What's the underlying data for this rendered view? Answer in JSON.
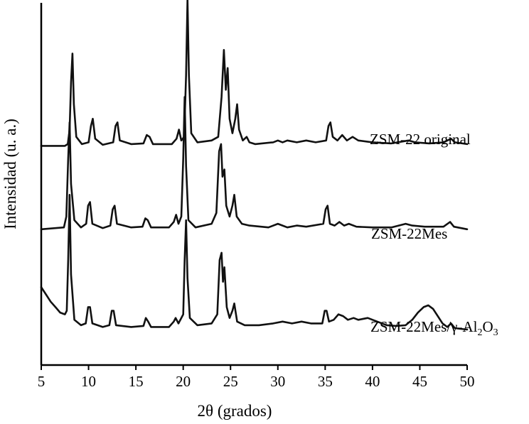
{
  "chart_data": {
    "type": "line",
    "title": "",
    "xlabel": "2θ (grados)",
    "ylabel": "Intensidad (u. a.)",
    "xlim": [
      5,
      50
    ],
    "x_ticks": [
      5,
      10,
      15,
      20,
      25,
      30,
      35,
      40,
      45,
      50
    ],
    "ylim": [
      0,
      1
    ],
    "grid": false,
    "legend": "inline labels at right of each trace",
    "series": [
      {
        "name": "ZSM-22 original",
        "offset": 0.6,
        "points": [
          [
            5,
            0.005
          ],
          [
            7.5,
            0.005
          ],
          [
            7.8,
            0.01
          ],
          [
            8.0,
            0.05
          ],
          [
            8.15,
            0.18
          ],
          [
            8.3,
            0.26
          ],
          [
            8.45,
            0.12
          ],
          [
            8.7,
            0.03
          ],
          [
            9.3,
            0.01
          ],
          [
            10.0,
            0.015
          ],
          [
            10.25,
            0.06
          ],
          [
            10.45,
            0.08
          ],
          [
            10.7,
            0.025
          ],
          [
            11.5,
            0.008
          ],
          [
            12.6,
            0.015
          ],
          [
            12.85,
            0.06
          ],
          [
            13.05,
            0.07
          ],
          [
            13.3,
            0.02
          ],
          [
            14.5,
            0.01
          ],
          [
            15.8,
            0.012
          ],
          [
            16.15,
            0.035
          ],
          [
            16.45,
            0.03
          ],
          [
            16.8,
            0.01
          ],
          [
            18.8,
            0.01
          ],
          [
            19.3,
            0.025
          ],
          [
            19.55,
            0.05
          ],
          [
            19.8,
            0.02
          ],
          [
            20.1,
            0.03
          ],
          [
            20.3,
            0.2
          ],
          [
            20.45,
            0.41
          ],
          [
            20.6,
            0.2
          ],
          [
            20.85,
            0.04
          ],
          [
            21.5,
            0.015
          ],
          [
            23.0,
            0.02
          ],
          [
            23.7,
            0.03
          ],
          [
            24.05,
            0.14
          ],
          [
            24.3,
            0.27
          ],
          [
            24.5,
            0.16
          ],
          [
            24.7,
            0.22
          ],
          [
            24.9,
            0.08
          ],
          [
            25.2,
            0.04
          ],
          [
            25.5,
            0.08
          ],
          [
            25.7,
            0.12
          ],
          [
            25.9,
            0.05
          ],
          [
            26.3,
            0.02
          ],
          [
            26.7,
            0.03
          ],
          [
            27.0,
            0.015
          ],
          [
            27.6,
            0.01
          ],
          [
            29.5,
            0.015
          ],
          [
            30.0,
            0.02
          ],
          [
            30.5,
            0.015
          ],
          [
            31.0,
            0.02
          ],
          [
            32.0,
            0.015
          ],
          [
            33.0,
            0.02
          ],
          [
            34.0,
            0.015
          ],
          [
            35.1,
            0.02
          ],
          [
            35.35,
            0.06
          ],
          [
            35.55,
            0.07
          ],
          [
            35.8,
            0.03
          ],
          [
            36.3,
            0.02
          ],
          [
            36.8,
            0.035
          ],
          [
            37.3,
            0.02
          ],
          [
            37.9,
            0.03
          ],
          [
            38.5,
            0.02
          ],
          [
            40.0,
            0.015
          ],
          [
            42.0,
            0.012
          ],
          [
            43.8,
            0.02
          ],
          [
            44.5,
            0.015
          ],
          [
            46.0,
            0.012
          ],
          [
            47.5,
            0.015
          ],
          [
            48.3,
            0.025
          ],
          [
            48.7,
            0.015
          ],
          [
            50,
            0.01
          ]
        ]
      },
      {
        "name": "ZSM-22Mes",
        "offset": 0.37,
        "points": [
          [
            5,
            0.005
          ],
          [
            7.4,
            0.01
          ],
          [
            7.65,
            0.04
          ],
          [
            7.85,
            0.2
          ],
          [
            8.0,
            0.3
          ],
          [
            8.15,
            0.13
          ],
          [
            8.5,
            0.03
          ],
          [
            9.2,
            0.01
          ],
          [
            9.75,
            0.02
          ],
          [
            9.95,
            0.07
          ],
          [
            10.15,
            0.08
          ],
          [
            10.4,
            0.02
          ],
          [
            11.5,
            0.008
          ],
          [
            12.3,
            0.015
          ],
          [
            12.55,
            0.06
          ],
          [
            12.75,
            0.07
          ],
          [
            13.0,
            0.02
          ],
          [
            14.5,
            0.01
          ],
          [
            15.7,
            0.012
          ],
          [
            16.0,
            0.035
          ],
          [
            16.25,
            0.03
          ],
          [
            16.6,
            0.01
          ],
          [
            18.5,
            0.01
          ],
          [
            19.0,
            0.025
          ],
          [
            19.25,
            0.045
          ],
          [
            19.5,
            0.02
          ],
          [
            19.8,
            0.04
          ],
          [
            20.0,
            0.2
          ],
          [
            20.15,
            0.37
          ],
          [
            20.3,
            0.18
          ],
          [
            20.55,
            0.03
          ],
          [
            21.3,
            0.01
          ],
          [
            23.0,
            0.02
          ],
          [
            23.5,
            0.05
          ],
          [
            23.8,
            0.22
          ],
          [
            24.0,
            0.24
          ],
          [
            24.15,
            0.15
          ],
          [
            24.35,
            0.17
          ],
          [
            24.55,
            0.07
          ],
          [
            24.9,
            0.04
          ],
          [
            25.2,
            0.07
          ],
          [
            25.4,
            0.1
          ],
          [
            25.65,
            0.04
          ],
          [
            26.2,
            0.02
          ],
          [
            27.0,
            0.015
          ],
          [
            29.0,
            0.01
          ],
          [
            30.0,
            0.02
          ],
          [
            30.5,
            0.015
          ],
          [
            31.0,
            0.01
          ],
          [
            32.0,
            0.015
          ],
          [
            33.0,
            0.012
          ],
          [
            34.8,
            0.02
          ],
          [
            35.05,
            0.06
          ],
          [
            35.25,
            0.07
          ],
          [
            35.5,
            0.02
          ],
          [
            36.0,
            0.015
          ],
          [
            36.5,
            0.025
          ],
          [
            37.0,
            0.015
          ],
          [
            37.5,
            0.02
          ],
          [
            38.3,
            0.012
          ],
          [
            40.0,
            0.01
          ],
          [
            42.0,
            0.01
          ],
          [
            43.5,
            0.02
          ],
          [
            44.2,
            0.015
          ],
          [
            45.5,
            0.012
          ],
          [
            47.5,
            0.012
          ],
          [
            48.2,
            0.025
          ],
          [
            48.6,
            0.012
          ],
          [
            50,
            0.005
          ]
        ]
      },
      {
        "name": "ZSM-22Mes/γ-Al2O3",
        "label_parts": {
          "pre": "ZSM-22Mes/γ-Al",
          "sub1": "2",
          "mid": "O",
          "sub2": "3"
        },
        "offset": 0.09,
        "points": [
          [
            5,
            0.125
          ],
          [
            5.5,
            0.105
          ],
          [
            6.0,
            0.085
          ],
          [
            6.5,
            0.07
          ],
          [
            7.0,
            0.055
          ],
          [
            7.5,
            0.05
          ],
          [
            7.7,
            0.06
          ],
          [
            7.85,
            0.2
          ],
          [
            8.0,
            0.38
          ],
          [
            8.15,
            0.16
          ],
          [
            8.5,
            0.035
          ],
          [
            9.2,
            0.02
          ],
          [
            9.7,
            0.025
          ],
          [
            9.95,
            0.07
          ],
          [
            10.15,
            0.07
          ],
          [
            10.4,
            0.025
          ],
          [
            11.5,
            0.015
          ],
          [
            12.2,
            0.02
          ],
          [
            12.45,
            0.06
          ],
          [
            12.65,
            0.06
          ],
          [
            12.9,
            0.02
          ],
          [
            14.5,
            0.015
          ],
          [
            15.8,
            0.018
          ],
          [
            16.05,
            0.04
          ],
          [
            16.3,
            0.03
          ],
          [
            16.6,
            0.015
          ],
          [
            18.5,
            0.015
          ],
          [
            19.0,
            0.03
          ],
          [
            19.2,
            0.04
          ],
          [
            19.5,
            0.025
          ],
          [
            20.0,
            0.05
          ],
          [
            20.15,
            0.2
          ],
          [
            20.3,
            0.31
          ],
          [
            20.45,
            0.15
          ],
          [
            20.7,
            0.04
          ],
          [
            21.5,
            0.02
          ],
          [
            23.0,
            0.025
          ],
          [
            23.6,
            0.05
          ],
          [
            23.85,
            0.2
          ],
          [
            24.05,
            0.22
          ],
          [
            24.2,
            0.14
          ],
          [
            24.35,
            0.18
          ],
          [
            24.6,
            0.07
          ],
          [
            24.9,
            0.04
          ],
          [
            25.2,
            0.06
          ],
          [
            25.4,
            0.08
          ],
          [
            25.7,
            0.03
          ],
          [
            26.5,
            0.02
          ],
          [
            28.0,
            0.02
          ],
          [
            29.5,
            0.025
          ],
          [
            30.5,
            0.03
          ],
          [
            31.5,
            0.025
          ],
          [
            32.5,
            0.03
          ],
          [
            33.5,
            0.025
          ],
          [
            34.7,
            0.025
          ],
          [
            34.95,
            0.06
          ],
          [
            35.15,
            0.06
          ],
          [
            35.4,
            0.03
          ],
          [
            35.9,
            0.035
          ],
          [
            36.4,
            0.05
          ],
          [
            36.9,
            0.045
          ],
          [
            37.4,
            0.035
          ],
          [
            38.0,
            0.04
          ],
          [
            38.5,
            0.035
          ],
          [
            39.5,
            0.04
          ],
          [
            40.5,
            0.03
          ],
          [
            41.5,
            0.02
          ],
          [
            42.5,
            0.018
          ],
          [
            43.5,
            0.02
          ],
          [
            44.2,
            0.035
          ],
          [
            44.8,
            0.055
          ],
          [
            45.4,
            0.07
          ],
          [
            45.9,
            0.075
          ],
          [
            46.4,
            0.065
          ],
          [
            46.9,
            0.045
          ],
          [
            47.4,
            0.025
          ],
          [
            47.9,
            0.015
          ],
          [
            48.3,
            0.025
          ],
          [
            48.7,
            0.012
          ],
          [
            49.3,
            0.01
          ],
          [
            50,
            0.008
          ]
        ]
      }
    ]
  }
}
